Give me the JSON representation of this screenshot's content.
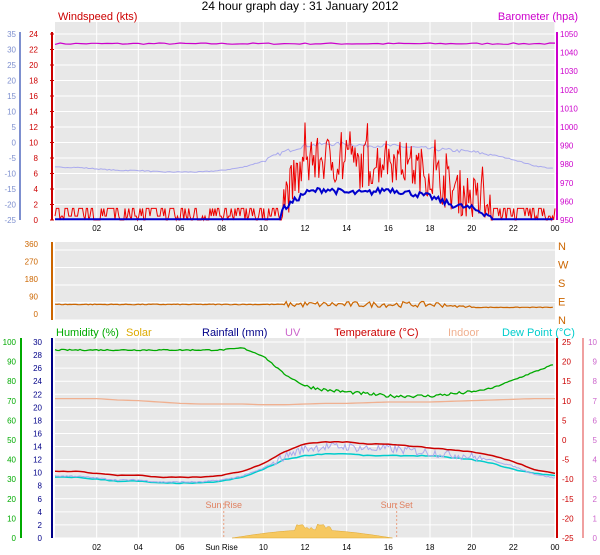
{
  "title": "24 hour graph day : 31 January 2012",
  "colors": {
    "windspeed": "#ee0000",
    "windgust_avg": "#0000cc",
    "barometer": "#cc00cc",
    "winddir": "#cc6600",
    "humidity": "#00aa00",
    "solar": "#ddaa00",
    "rainfall": "#000088",
    "uv": "#cc66cc",
    "temperature": "#cc0000",
    "indoor": "#f0b090",
    "dewpoint": "#00cccc",
    "tempseries": "#aaaaee",
    "axis_blue": "#7d8fcf",
    "plot_bg": "#e8e8e8"
  },
  "x_ticks": [
    "02",
    "04",
    "06",
    "08",
    "10",
    "12",
    "14",
    "16",
    "18",
    "20",
    "22",
    "00"
  ],
  "panel1": {
    "title_left": "Windspeed (kts)",
    "title_right": "Barometer (hpa)",
    "left_ticks_outer": [
      "35",
      "30",
      "25",
      "20",
      "15",
      "10",
      "5",
      "0",
      "-5",
      "-10",
      "-15",
      "-20",
      "-25"
    ],
    "left_ticks_inner": [
      "24",
      "22",
      "20",
      "18",
      "16",
      "14",
      "12",
      "10",
      "8",
      "6",
      "4",
      "2",
      "0"
    ],
    "right_ticks": [
      "1050",
      "1040",
      "1030",
      "1020",
      "1010",
      "1000",
      "990",
      "980",
      "970",
      "960",
      "950"
    ]
  },
  "panel2": {
    "left_ticks": [
      "360",
      "270",
      "180",
      "90",
      "0"
    ],
    "right_labels": [
      "N",
      "W",
      "S",
      "E",
      "N"
    ]
  },
  "panel3": {
    "legend": {
      "humidity": "Humidity (%)",
      "solar": "Solar",
      "rainfall": "Rainfall (mm)",
      "uv": "UV",
      "temperature": "Temperature (°C)",
      "indoor": "Indoor",
      "dewpoint": "Dew Point (°C)"
    },
    "left_ticks_outer": [
      "100",
      "90",
      "80",
      "70",
      "60",
      "50",
      "40",
      "30",
      "20",
      "10",
      "0"
    ],
    "left_ticks_inner": [
      "30",
      "28",
      "26",
      "24",
      "22",
      "20",
      "18",
      "16",
      "14",
      "12",
      "10",
      "8",
      "6",
      "4",
      "2",
      "0"
    ],
    "right_ticks_inner": [
      "25",
      "20",
      "15",
      "10",
      "5",
      "0",
      "-5",
      "-10",
      "-15",
      "-20",
      "-25"
    ],
    "right_ticks_outer": [
      "10",
      "9",
      "8",
      "7",
      "6",
      "5",
      "4",
      "3",
      "2",
      "1",
      "0"
    ],
    "sunrise_label": "Sun Rise",
    "sunset_label": "Sun Set",
    "x_ticks": [
      "02",
      "04",
      "06",
      "Sun Rise",
      "10",
      "12",
      "14",
      "16",
      "18",
      "20",
      "22",
      "00"
    ]
  },
  "chart_data": {
    "type": "line",
    "title": "24 hour graph day : 31 January 2012",
    "x_hours": [
      0,
      1,
      2,
      3,
      4,
      5,
      6,
      7,
      8,
      9,
      10,
      11,
      12,
      13,
      14,
      15,
      16,
      17,
      18,
      19,
      20,
      21,
      22,
      23,
      24
    ],
    "series": [
      {
        "name": "Windspeed (kts)",
        "values": [
          1,
          1,
          1,
          1,
          1,
          1,
          1,
          1,
          1,
          1,
          1,
          3,
          7,
          8,
          7,
          7,
          8,
          7,
          6,
          4,
          3,
          1,
          1,
          1,
          1
        ]
      },
      {
        "name": "Barometer (hpa)",
        "values": [
          1045,
          1045,
          1045,
          1045,
          1045,
          1045,
          1045,
          1045,
          1045,
          1045,
          1045,
          1045,
          1045,
          1045,
          1045,
          1045,
          1045,
          1045,
          1045,
          1045,
          1045,
          1045,
          1045,
          1045,
          1045
        ]
      },
      {
        "name": "Humidity (%)",
        "values": [
          94,
          94,
          94,
          94,
          94,
          94,
          94,
          94,
          94,
          95,
          91,
          82,
          76,
          74,
          73,
          72,
          71,
          71,
          71,
          72,
          73,
          75,
          79,
          83,
          87
        ]
      },
      {
        "name": "Temperature (°C)",
        "values": [
          -8,
          -8,
          -8.5,
          -9,
          -9,
          -9.5,
          -9.5,
          -9.5,
          -9,
          -8,
          -6,
          -3,
          -1,
          -0.5,
          -0.5,
          -1,
          -1,
          -1.5,
          -2,
          -2.5,
          -3,
          -4,
          -5.5,
          -7.5,
          -8.5
        ]
      },
      {
        "name": "Dew Point (°C)",
        "values": [
          -9.5,
          -9.5,
          -10,
          -10.5,
          -10.5,
          -11,
          -11,
          -11,
          -10.5,
          -9.5,
          -7.5,
          -5,
          -4,
          -3.5,
          -3.5,
          -4,
          -4,
          -4,
          -4,
          -4.5,
          -5,
          -6,
          -7.5,
          -8.5,
          -9
        ]
      },
      {
        "name": "Indoor",
        "values": [
          20.5,
          20.5,
          20.5,
          20.3,
          20.2,
          20,
          19.8,
          19.7,
          19.7,
          19.7,
          19.6,
          19.6,
          19.7,
          19.8,
          19.8,
          19.9,
          20,
          20,
          20,
          20.1,
          20.2,
          20.3,
          20.4,
          20.5,
          20.5
        ]
      }
    ]
  }
}
